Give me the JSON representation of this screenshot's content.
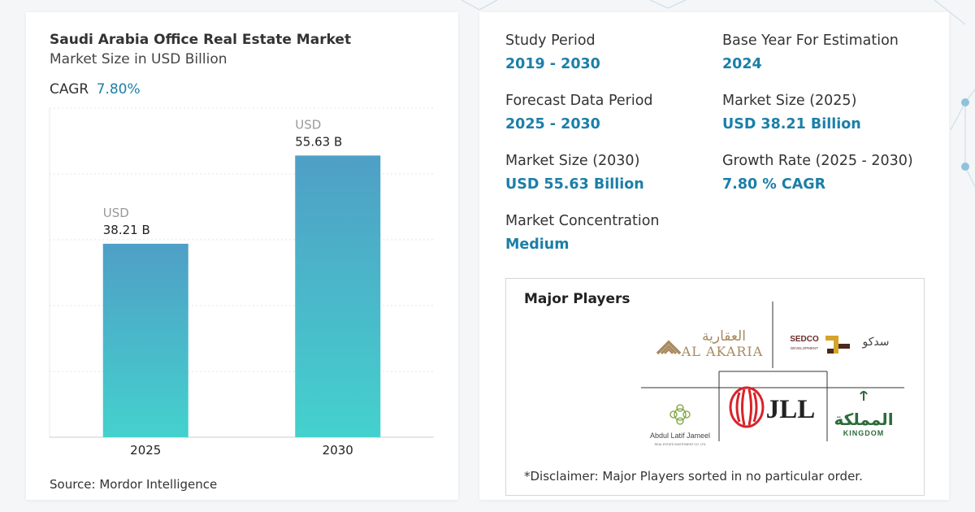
{
  "chart_data": {
    "type": "bar",
    "title": "Saudi Arabia Office Real Estate Market",
    "subtitle": "Market Size in USD Billion",
    "categories": [
      "2025",
      "2030"
    ],
    "values": [
      38.21,
      55.63
    ],
    "value_prefix": "USD",
    "value_labels": [
      "38.21 B",
      "55.63 B"
    ],
    "ylim": [
      0,
      65
    ],
    "grid": true,
    "bar_gradient": {
      "top": "#4f9fc6",
      "bottom": "#44d1cd"
    }
  },
  "cagr": {
    "label": "CAGR",
    "value": "7.80%"
  },
  "source": "Source: Mordor Intelligence",
  "stats": [
    {
      "label": "Study Period",
      "value": "2019 - 2030"
    },
    {
      "label": "Base Year For Estimation",
      "value": "2024"
    },
    {
      "label": "Forecast Data Period",
      "value": "2025 - 2030"
    },
    {
      "label": "Market Size (2025)",
      "value": "USD 38.21 Billion"
    },
    {
      "label": "Market Size (2030)",
      "value": "USD 55.63 Billion"
    },
    {
      "label": "Growth Rate (2025 - 2030)",
      "value": "7.80 % CAGR"
    },
    {
      "label": "Market Concentration",
      "value": "Medium"
    }
  ],
  "players": {
    "title": "Major Players",
    "disclaimer": "*Disclaimer: Major Players sorted in no particular order.",
    "logos": [
      {
        "name": "AL AKARIA",
        "arabic": "العقارية",
        "icon": "al-akaria-logo"
      },
      {
        "name": "SEDCO",
        "sub": "DEVELOPMENT",
        "arabic": "سدكو",
        "icon": "sedco-logo"
      },
      {
        "name": "Abdul Latif Jameel",
        "sub": "REAL ESTATE INVESTMENT CO. LTD",
        "icon": "abdul-latif-jameel-logo"
      },
      {
        "name": "JLL",
        "icon": "jll-logo"
      },
      {
        "name": "KINGDOM",
        "arabic": "المملكة",
        "icon": "kingdom-logo"
      }
    ]
  },
  "colors": {
    "accent": "#1b7fa8",
    "label_gray": "#999999"
  }
}
